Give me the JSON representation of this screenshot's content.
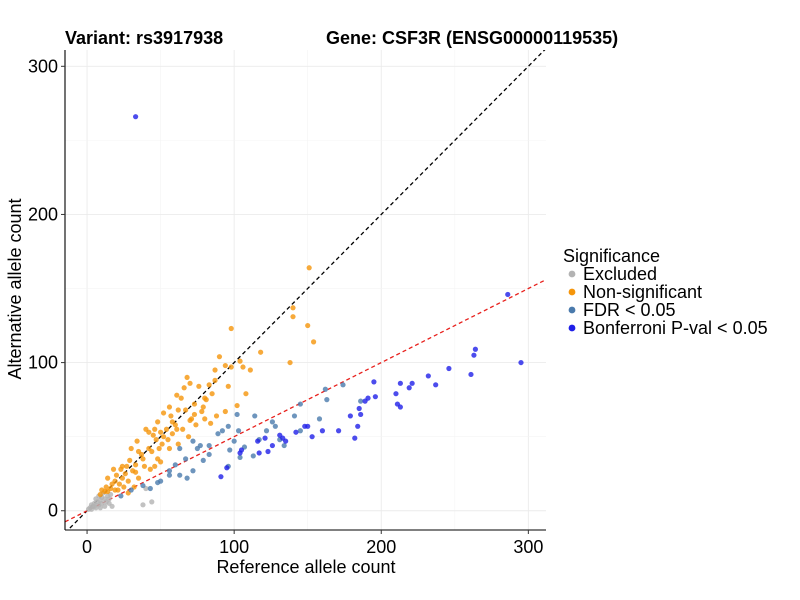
{
  "chart_data": {
    "type": "scatter",
    "title_left": "Variant: rs3917938",
    "title_right": "Gene: CSF3R (ENSG00000119535)",
    "xlabel": "Reference allele count",
    "ylabel": "Alternative allele count",
    "xlim": [
      -15,
      312
    ],
    "ylim": [
      -13,
      311
    ],
    "xticks": [
      0,
      100,
      200,
      300
    ],
    "yticks": [
      0,
      100,
      200,
      300
    ],
    "grid": true,
    "legend": {
      "title": "Significance",
      "placement": "right",
      "entries": [
        {
          "label": "Excluded",
          "color": "#b3b3b3"
        },
        {
          "label": "Non-significant",
          "color": "#f5950a"
        },
        {
          "label": "FDR < 0.05",
          "color": "#4a7aac"
        },
        {
          "label": "Bonferroni P-val < 0.05",
          "color": "#1f1fe8"
        }
      ]
    },
    "reference_lines": [
      {
        "type": "diagonal",
        "slope": 1,
        "intercept": 0,
        "color": "#000000",
        "style": "dashed"
      },
      {
        "type": "fit",
        "slope": 0.5,
        "intercept": 0,
        "color": "#e8201c",
        "style": "dashed"
      }
    ],
    "series": [
      {
        "name": "Excluded",
        "color": "#b3b3b3",
        "points": [
          [
            2,
            2
          ],
          [
            3,
            4
          ],
          [
            4,
            3
          ],
          [
            5,
            5
          ],
          [
            6,
            8
          ],
          [
            7,
            6
          ],
          [
            8,
            4
          ],
          [
            8,
            10
          ],
          [
            9,
            7
          ],
          [
            10,
            9
          ],
          [
            10,
            5
          ],
          [
            11,
            12
          ],
          [
            12,
            8
          ],
          [
            13,
            6
          ],
          [
            14,
            10
          ],
          [
            15,
            5
          ],
          [
            15,
            8
          ],
          [
            17,
            3
          ],
          [
            12,
            3
          ],
          [
            6,
            2
          ],
          [
            9,
            2
          ],
          [
            3,
            1
          ],
          [
            5,
            3
          ],
          [
            1,
            1
          ],
          [
            16,
            11
          ],
          [
            38,
            4
          ],
          [
            44,
            6
          ],
          [
            40,
            15
          ]
        ]
      },
      {
        "name": "Non-significant",
        "color": "#f5950a",
        "points": [
          [
            151,
            164
          ],
          [
            98,
            123
          ],
          [
            150,
            125
          ],
          [
            140,
            137
          ],
          [
            154,
            114
          ],
          [
            90,
            104
          ],
          [
            98,
            97
          ],
          [
            111,
            95
          ],
          [
            106,
            97
          ],
          [
            118,
            107
          ],
          [
            138,
            100
          ],
          [
            140,
            131
          ],
          [
            104,
            101
          ],
          [
            94,
            98
          ],
          [
            87,
            95
          ],
          [
            85,
            79
          ],
          [
            81,
            75
          ],
          [
            80,
            76
          ],
          [
            76,
            84
          ],
          [
            70,
            86
          ],
          [
            66,
            83
          ],
          [
            64,
            76
          ],
          [
            62,
            68
          ],
          [
            67,
            68
          ],
          [
            73,
            72
          ],
          [
            78,
            67
          ],
          [
            71,
            62
          ],
          [
            60,
            58
          ],
          [
            58,
            60
          ],
          [
            54,
            55
          ],
          [
            52,
            50
          ],
          [
            55,
            48
          ],
          [
            51,
            45
          ],
          [
            47,
            48
          ],
          [
            45,
            51
          ],
          [
            42,
            53
          ],
          [
            49,
            42
          ],
          [
            44,
            40
          ],
          [
            42,
            42
          ],
          [
            37,
            38
          ],
          [
            35,
            40
          ],
          [
            38,
            35
          ],
          [
            33,
            31
          ],
          [
            31,
            27
          ],
          [
            29,
            34
          ],
          [
            27,
            30
          ],
          [
            26,
            25
          ],
          [
            24,
            22
          ],
          [
            23,
            28
          ],
          [
            20,
            24
          ],
          [
            19,
            20
          ],
          [
            17,
            18
          ],
          [
            22,
            18
          ],
          [
            25,
            16
          ],
          [
            19,
            14
          ],
          [
            16,
            15
          ],
          [
            14,
            13
          ],
          [
            12,
            13
          ],
          [
            10,
            14
          ],
          [
            9,
            11
          ],
          [
            34,
            47
          ],
          [
            40,
            55
          ],
          [
            48,
            60
          ],
          [
            52,
            66
          ],
          [
            56,
            70
          ],
          [
            61,
            78
          ],
          [
            68,
            90
          ],
          [
            73,
            65
          ],
          [
            79,
            70
          ],
          [
            84,
            59
          ],
          [
            88,
            64
          ],
          [
            94,
            67
          ],
          [
            102,
            71
          ],
          [
            108,
            79
          ],
          [
            80,
            62
          ],
          [
            74,
            58
          ],
          [
            61,
            55
          ],
          [
            57,
            64
          ],
          [
            50,
            53
          ],
          [
            46,
            55
          ],
          [
            30,
            42
          ],
          [
            28,
            20
          ],
          [
            35,
            22
          ],
          [
            43,
            28
          ],
          [
            50,
            33
          ],
          [
            33,
            26
          ],
          [
            39,
            30
          ],
          [
            24,
            30
          ],
          [
            18,
            28
          ],
          [
            14,
            22
          ],
          [
            13,
            16
          ],
          [
            21,
            14
          ],
          [
            28,
            12
          ],
          [
            32,
            16
          ],
          [
            65,
            55
          ],
          [
            69,
            50
          ],
          [
            62,
            45
          ],
          [
            56,
            42
          ],
          [
            48,
            35
          ],
          [
            58,
            52
          ],
          [
            70,
            61
          ],
          [
            83,
            85
          ],
          [
            87,
            88
          ],
          [
            96,
            84
          ],
          [
            46,
            30
          ]
        ]
      },
      {
        "name": "FDR < 0.05",
        "color": "#4a7aac",
        "points": [
          [
            174,
            85
          ],
          [
            162,
            82
          ],
          [
            163,
            75
          ],
          [
            141,
            64
          ],
          [
            145,
            72
          ],
          [
            128,
            57
          ],
          [
            126,
            60
          ],
          [
            114,
            64
          ],
          [
            102,
            65
          ],
          [
            103,
            54
          ],
          [
            92,
            54
          ],
          [
            96,
            57
          ],
          [
            89,
            52
          ],
          [
            83,
            44
          ],
          [
            77,
            44
          ],
          [
            72,
            47
          ],
          [
            75,
            42
          ],
          [
            63,
            42
          ],
          [
            67,
            35
          ],
          [
            60,
            31
          ],
          [
            68,
            22
          ],
          [
            63,
            24
          ],
          [
            56,
            24
          ],
          [
            38,
            17
          ],
          [
            43,
            15
          ],
          [
            48,
            19
          ],
          [
            30,
            14
          ],
          [
            23,
            10
          ],
          [
            113,
            37
          ],
          [
            107,
            43
          ],
          [
            97,
            41
          ],
          [
            83,
            38
          ],
          [
            100,
            47
          ],
          [
            117,
            48
          ],
          [
            104,
            36
          ],
          [
            122,
            54
          ],
          [
            134,
            44
          ],
          [
            186,
            74
          ],
          [
            158,
            62
          ],
          [
            145,
            54
          ],
          [
            131,
            48
          ],
          [
            96,
            30
          ],
          [
            79,
            34
          ],
          [
            72,
            27
          ],
          [
            50,
            20
          ],
          [
            56,
            27
          ]
        ]
      },
      {
        "name": "Bonferroni P-val < 0.05",
        "color": "#1f1fe8",
        "points": [
          [
            33,
            266
          ],
          [
            286,
            146
          ],
          [
            264,
            109
          ],
          [
            263,
            105
          ],
          [
            295,
            100
          ],
          [
            261,
            92
          ],
          [
            246,
            96
          ],
          [
            232,
            91
          ],
          [
            237,
            85
          ],
          [
            221,
            86
          ],
          [
            219,
            83
          ],
          [
            213,
            86
          ],
          [
            210,
            79
          ],
          [
            213,
            70
          ],
          [
            211,
            72
          ],
          [
            195,
            87
          ],
          [
            196,
            77
          ],
          [
            191,
            76
          ],
          [
            189,
            74
          ],
          [
            185,
            69
          ],
          [
            186,
            65
          ],
          [
            179,
            64
          ],
          [
            184,
            57
          ],
          [
            182,
            49
          ],
          [
            171,
            54
          ],
          [
            160,
            54
          ],
          [
            150,
            57
          ],
          [
            153,
            50
          ],
          [
            148,
            57
          ],
          [
            142,
            53
          ],
          [
            133,
            49
          ],
          [
            135,
            47
          ],
          [
            131,
            51
          ],
          [
            126,
            44
          ],
          [
            121,
            49
          ],
          [
            123,
            40
          ],
          [
            116,
            47
          ],
          [
            117,
            39
          ],
          [
            105,
            41
          ],
          [
            95,
            29
          ],
          [
            91,
            23
          ],
          [
            104,
            39
          ]
        ]
      }
    ]
  }
}
